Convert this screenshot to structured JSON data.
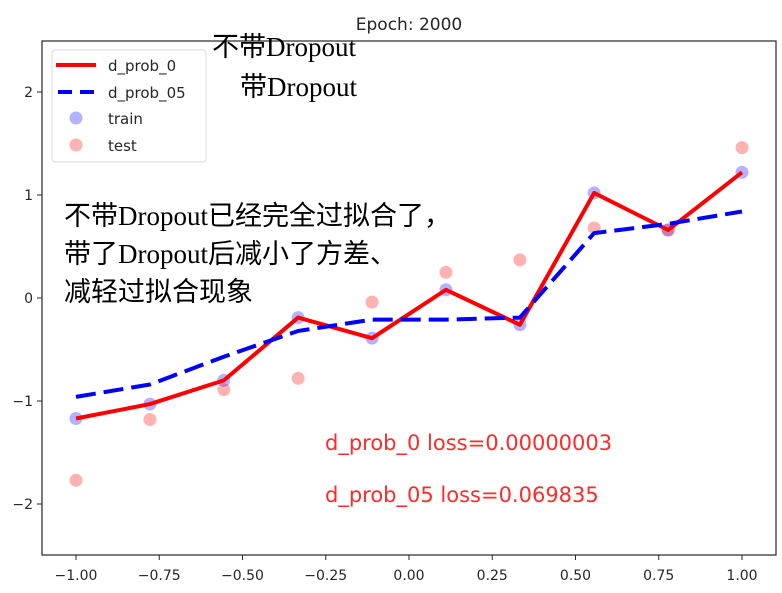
{
  "chart_data": {
    "type": "line",
    "title": "Epoch: 2000",
    "xlabel": "",
    "ylabel": "",
    "xlim": [
      -1.1,
      1.1
    ],
    "ylim": [
      -2.5,
      2.5
    ],
    "grid": false,
    "legend_position": "upper left",
    "xticks": [
      -1.0,
      -0.75,
      -0.5,
      -0.25,
      0.0,
      0.25,
      0.5,
      0.75,
      1.0
    ],
    "xtick_labels": [
      "−1.00",
      "−0.75",
      "−0.50",
      "−0.25",
      "0.00",
      "0.25",
      "0.50",
      "0.75",
      "1.00"
    ],
    "yticks": [
      2,
      1,
      0,
      -1,
      -2
    ],
    "ytick_labels": [
      "2",
      "1",
      "0",
      "−1",
      "−2"
    ],
    "x": [
      -1.0,
      -0.778,
      -0.556,
      -0.333,
      -0.111,
      0.111,
      0.333,
      0.556,
      0.778,
      1.0
    ],
    "series": [
      {
        "name": "d_prob_0",
        "kind": "line",
        "style": "solid",
        "color": "#ff0000",
        "values": [
          -1.17,
          -1.03,
          -0.8,
          -0.19,
          -0.39,
          0.08,
          -0.26,
          1.02,
          0.66,
          1.22
        ]
      },
      {
        "name": "d_prob_05",
        "kind": "line",
        "style": "dashed",
        "color": "#0000ff",
        "values": [
          -0.96,
          -0.84,
          -0.57,
          -0.32,
          -0.21,
          -0.21,
          -0.19,
          0.63,
          0.72,
          0.84
        ]
      },
      {
        "name": "train",
        "kind": "scatter",
        "color": "#0000ff",
        "alpha": 0.3,
        "values": [
          -1.17,
          -1.03,
          -0.8,
          -0.19,
          -0.39,
          0.08,
          -0.26,
          1.02,
          0.66,
          1.22
        ]
      },
      {
        "name": "test",
        "kind": "scatter",
        "color": "#ff0000",
        "alpha": 0.3,
        "values": [
          -1.77,
          -1.18,
          -0.89,
          -0.78,
          -0.04,
          0.25,
          0.37,
          0.68,
          0.66,
          1.46
        ]
      }
    ],
    "annotations": [
      {
        "text": "d_prob_0 loss=0.00000003",
        "color": "#ff0000"
      },
      {
        "text": "d_prob_05 loss=0.069835",
        "color": "#ff0000"
      },
      {
        "text": "不带Dropout",
        "color": "#000000"
      },
      {
        "text": "带Dropout",
        "color": "#000000"
      },
      {
        "text": "不带Dropout已经完全过拟合了，",
        "color": "#000000"
      },
      {
        "text": "带了Dropout后减小了方差、",
        "color": "#000000"
      },
      {
        "text": "减轻过拟合现象",
        "color": "#000000"
      }
    ]
  },
  "legend": {
    "items": [
      {
        "label": "d_prob_0"
      },
      {
        "label": "d_prob_05"
      },
      {
        "label": "train"
      },
      {
        "label": "test"
      }
    ]
  },
  "loss": {
    "d_prob_0": "d_prob_0 loss=0.00000003",
    "d_prob_05": "d_prob_05 loss=0.069835"
  },
  "overlay": {
    "label_no_dropout": "不带Dropout",
    "label_with_dropout": "带Dropout",
    "note_line1": "不带Dropout已经完全过拟合了，",
    "note_line2": "带了Dropout后减小了方差、",
    "note_line3": "减轻过拟合现象"
  }
}
